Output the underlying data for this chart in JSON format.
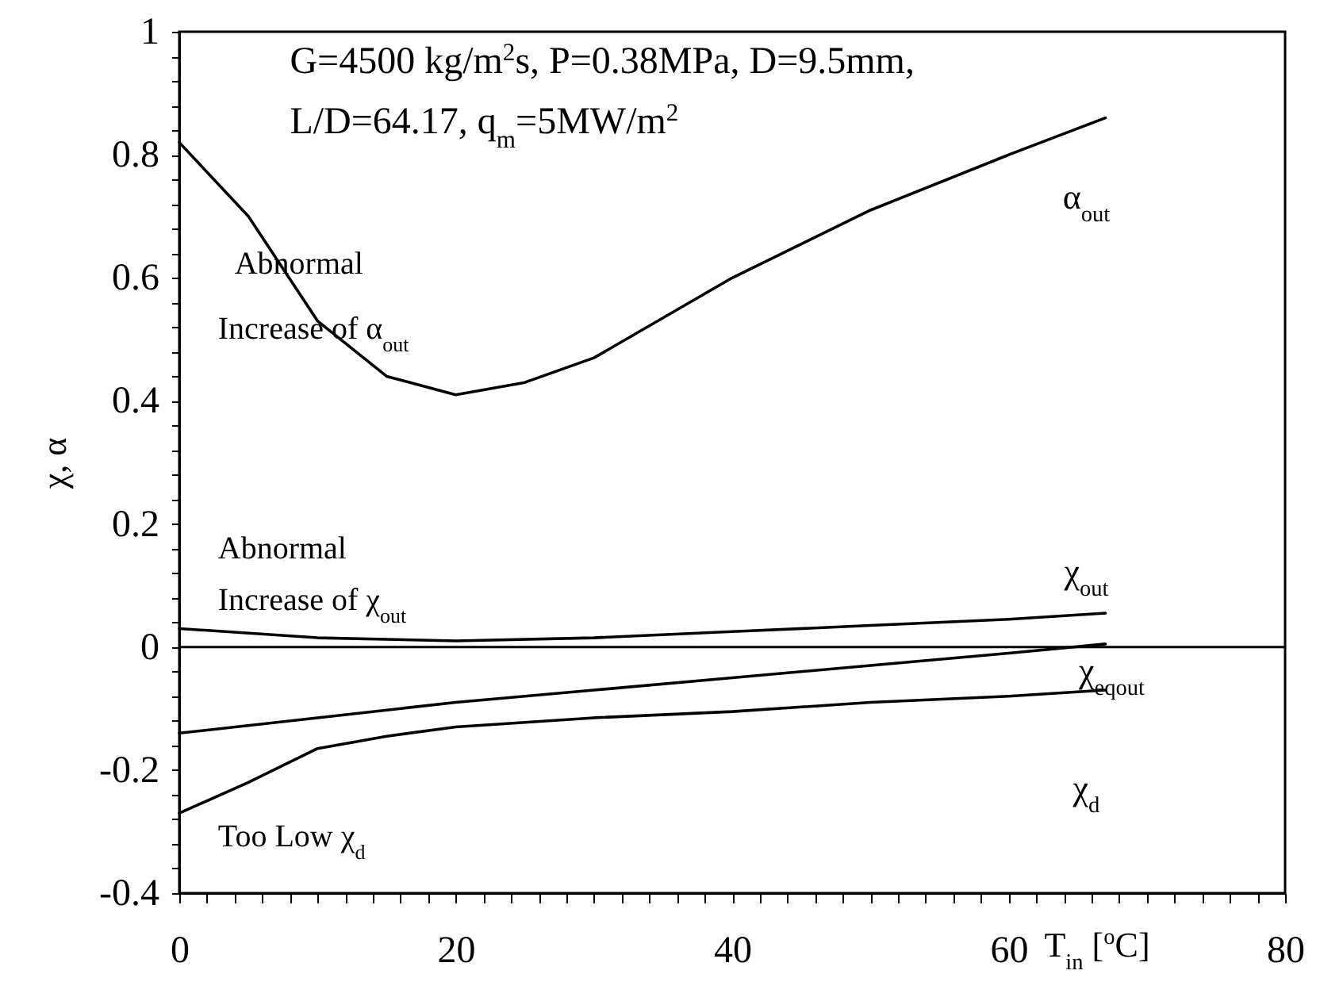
{
  "chart_data": {
    "type": "line",
    "xlabel": "T$_{in}$ [$^{o}$C]",
    "ylabel": "χ, α",
    "annotations": [
      "G=4500 kg/m$^{2}$s, P=0.38MPa, D=9.5mm,",
      "L/D=64.17, q$_{m}$=5MW/m$^{2}$",
      "Abnormal",
      "Increase of α$_{out}$",
      "Abnormal",
      "Increase of χ$_{out}$",
      "Too Low χ$_{d}$"
    ],
    "series": [
      {
        "name": "α$_{out}$",
        "color": "#000000",
        "x": [
          0,
          5,
          10,
          15,
          20,
          25,
          30,
          40,
          50,
          60,
          67
        ],
        "values": [
          0.82,
          0.7,
          0.53,
          0.44,
          0.41,
          0.43,
          0.47,
          0.6,
          0.71,
          0.8,
          0.86
        ]
      },
      {
        "name": "χ$_{out}$",
        "color": "#000000",
        "x": [
          0,
          10,
          20,
          30,
          40,
          50,
          60,
          67
        ],
        "values": [
          0.03,
          0.015,
          0.01,
          0.015,
          0.025,
          0.035,
          0.045,
          0.055
        ]
      },
      {
        "name": "χ$_{eqout}$",
        "color": "#000000",
        "x": [
          0,
          10,
          20,
          30,
          40,
          50,
          60,
          67
        ],
        "values": [
          -0.14,
          -0.115,
          -0.09,
          -0.07,
          -0.05,
          -0.03,
          -0.01,
          0.005
        ]
      },
      {
        "name": "χ$_{d}$",
        "color": "#000000",
        "x": [
          0,
          5,
          10,
          15,
          20,
          30,
          40,
          50,
          60,
          67
        ],
        "values": [
          -0.27,
          -0.22,
          -0.165,
          -0.145,
          -0.13,
          -0.115,
          -0.105,
          -0.09,
          -0.08,
          -0.07
        ]
      }
    ],
    "ref_lines": [
      {
        "axis": "y",
        "value": 0,
        "color": "#000000"
      }
    ],
    "xlim": [
      0,
      80
    ],
    "xticks": [
      0,
      {
        "value": 2,
        "label": null
      },
      {
        "value": 4,
        "label": null
      },
      {
        "value": 6,
        "label": null
      },
      {
        "value": 8,
        "label": null
      },
      {
        "value": 10,
        "label": null
      },
      {
        "value": 12,
        "label": null
      },
      {
        "value": 14,
        "label": null
      },
      {
        "value": 16,
        "label": null
      },
      {
        "value": 18,
        "label": null
      },
      20,
      {
        "value": 22,
        "label": null
      },
      {
        "value": 24,
        "label": null
      },
      {
        "value": 26,
        "label": null
      },
      {
        "value": 28,
        "label": null
      },
      {
        "value": 30,
        "label": null
      },
      {
        "value": 32,
        "label": null
      },
      {
        "value": 34,
        "label": null
      },
      {
        "value": 36,
        "label": null
      },
      {
        "value": 38,
        "label": null
      },
      40,
      {
        "value": 42,
        "label": null
      },
      {
        "value": 44,
        "label": null
      },
      {
        "value": 46,
        "label": null
      },
      {
        "value": 48,
        "label": null
      },
      {
        "value": 50,
        "label": null
      },
      {
        "value": 52,
        "label": null
      },
      {
        "value": 54,
        "label": null
      },
      {
        "value": 56,
        "label": null
      },
      {
        "value": 58,
        "label": null
      },
      60,
      {
        "value": 62,
        "label": null
      },
      {
        "value": 64,
        "label": null
      },
      {
        "value": 66,
        "label": null
      },
      {
        "value": 68,
        "label": null
      },
      {
        "value": 70,
        "label": null
      },
      {
        "value": 72,
        "label": null
      },
      {
        "value": 74,
        "label": null
      },
      {
        "value": 76,
        "label": null
      },
      {
        "value": 78,
        "label": null
      },
      80
    ],
    "ylim": [
      -0.4,
      1
    ],
    "yticks": [
      -0.4,
      {
        "value": -0.36,
        "label": null
      },
      {
        "value": -0.32,
        "label": null
      },
      {
        "value": -0.28,
        "label": null
      },
      {
        "value": -0.24,
        "label": null
      },
      -0.2,
      {
        "value": -0.16,
        "label": null
      },
      {
        "value": -0.12,
        "label": null
      },
      {
        "value": -0.08,
        "label": null
      },
      {
        "value": -0.04,
        "label": null
      },
      0,
      {
        "value": 0.04,
        "label": null
      },
      {
        "value": 0.08,
        "label": null
      },
      {
        "value": 0.12,
        "label": null
      },
      {
        "value": 0.16,
        "label": null
      },
      0.2,
      {
        "value": 0.24,
        "label": null
      },
      {
        "value": 0.28,
        "label": null
      },
      {
        "value": 0.32,
        "label": null
      },
      {
        "value": 0.36,
        "label": null
      },
      0.4,
      {
        "value": 0.44,
        "label": null
      },
      {
        "value": 0.48,
        "label": null
      },
      {
        "value": 0.52,
        "label": null
      },
      {
        "value": 0.56,
        "label": null
      },
      0.6,
      {
        "value": 0.64,
        "label": null
      },
      {
        "value": 0.68,
        "label": null
      },
      {
        "value": 0.72,
        "label": null
      },
      {
        "value": 0.76,
        "label": null
      },
      0.8,
      {
        "value": 0.84,
        "label": null
      },
      {
        "value": 0.88,
        "label": null
      },
      {
        "value": 0.92,
        "label": null
      },
      {
        "value": 0.96,
        "label": null
      },
      1
    ],
    "grid": false,
    "marker": "none",
    "line_style": "solid"
  }
}
